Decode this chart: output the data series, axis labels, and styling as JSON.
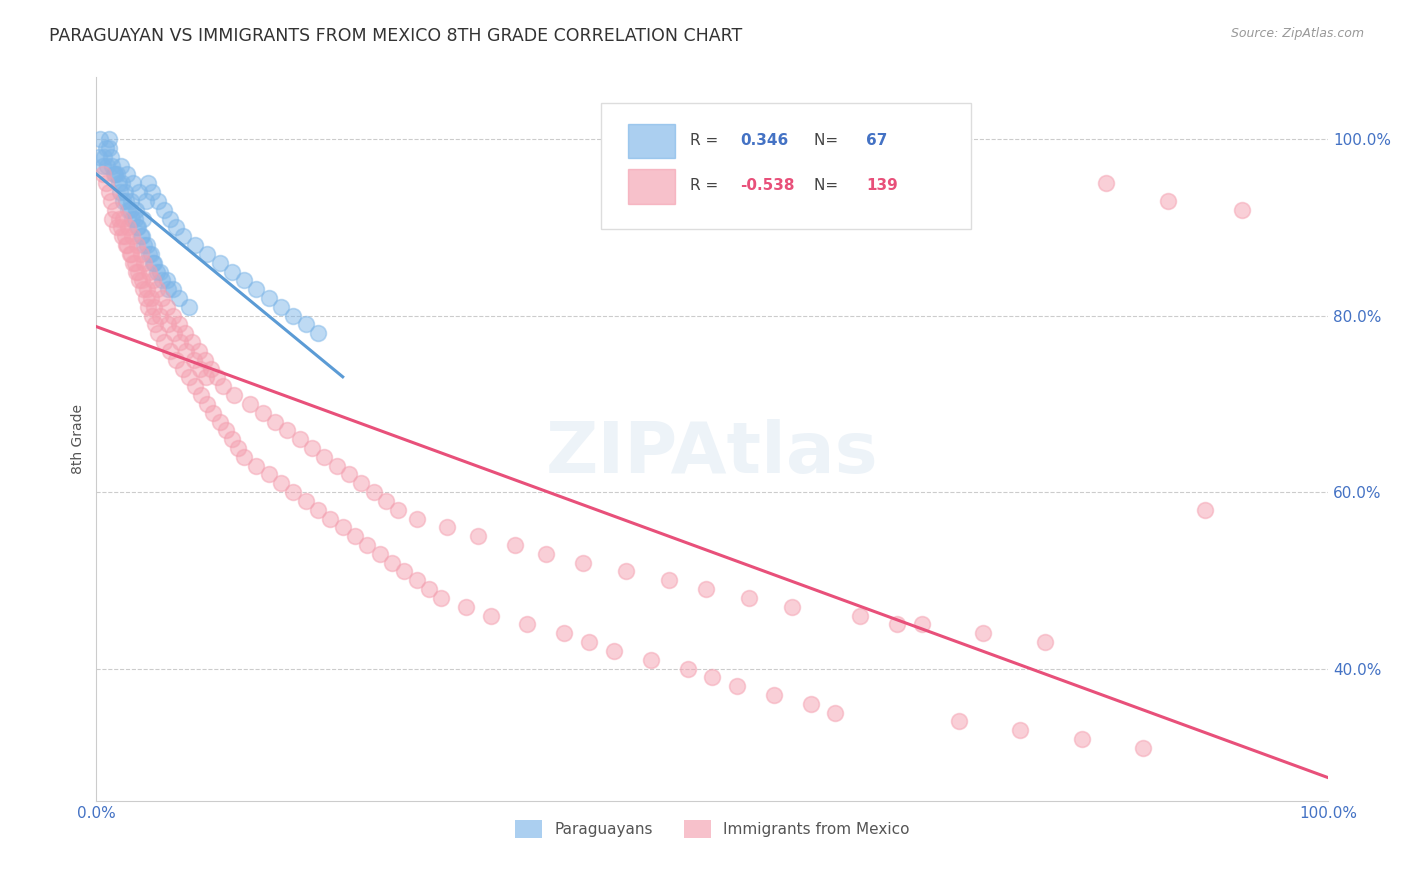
{
  "title": "PARAGUAYAN VS IMMIGRANTS FROM MEXICO 8TH GRADE CORRELATION CHART",
  "source": "Source: ZipAtlas.com",
  "ylabel": "8th Grade",
  "blue_R": 0.346,
  "blue_N": 67,
  "pink_R": -0.538,
  "pink_N": 139,
  "blue_color": "#7EB6E8",
  "pink_color": "#F4A0B0",
  "blue_line_color": "#5B9BD5",
  "pink_line_color": "#E8507A",
  "legend_label_blue": "Paraguayans",
  "legend_label_pink": "Immigrants from Mexico",
  "title_color": "#333333",
  "axis_label_color": "#555555",
  "tick_label_color": "#4472C4",
  "grid_color": "#CCCCCC",
  "background_color": "#FFFFFF",
  "blue_scatter_x": [
    0.2,
    0.5,
    0.8,
    1.0,
    1.2,
    1.5,
    1.8,
    2.0,
    2.3,
    2.5,
    2.8,
    3.0,
    3.2,
    3.5,
    3.8,
    4.0,
    4.2,
    4.5,
    5.0,
    5.5,
    6.0,
    6.5,
    7.0,
    8.0,
    9.0,
    10.0,
    11.0,
    12.0,
    13.0,
    14.0,
    15.0,
    16.0,
    17.0,
    18.0,
    1.0,
    1.3,
    1.7,
    2.1,
    2.4,
    2.7,
    3.1,
    3.4,
    3.7,
    4.1,
    4.4,
    4.7,
    5.2,
    5.7,
    6.2,
    6.7,
    7.5,
    0.3,
    0.6,
    0.9,
    1.4,
    1.9,
    2.2,
    2.6,
    2.9,
    3.3,
    3.6,
    3.9,
    4.3,
    4.6,
    4.9,
    5.3,
    5.8
  ],
  "blue_scatter_y": [
    98,
    97,
    99,
    100,
    98,
    96,
    95,
    97,
    94,
    96,
    93,
    95,
    92,
    94,
    91,
    93,
    95,
    94,
    93,
    92,
    91,
    90,
    89,
    88,
    87,
    86,
    85,
    84,
    83,
    82,
    81,
    80,
    79,
    78,
    99,
    97,
    96,
    95,
    93,
    92,
    91,
    90,
    89,
    88,
    87,
    86,
    85,
    84,
    83,
    82,
    81,
    100,
    98,
    97,
    96,
    94,
    93,
    92,
    91,
    90,
    89,
    88,
    87,
    86,
    85,
    84,
    83
  ],
  "pink_scatter_x": [
    0.5,
    0.8,
    1.0,
    1.2,
    1.5,
    1.8,
    2.0,
    2.3,
    2.5,
    2.8,
    3.0,
    3.2,
    3.5,
    3.8,
    4.0,
    4.2,
    4.5,
    4.8,
    5.0,
    5.5,
    6.0,
    6.5,
    7.0,
    7.5,
    8.0,
    8.5,
    9.0,
    9.5,
    10.0,
    10.5,
    11.0,
    11.5,
    12.0,
    13.0,
    14.0,
    15.0,
    16.0,
    17.0,
    18.0,
    19.0,
    20.0,
    21.0,
    22.0,
    23.0,
    24.0,
    25.0,
    26.0,
    27.0,
    28.0,
    30.0,
    32.0,
    35.0,
    38.0,
    40.0,
    42.0,
    45.0,
    48.0,
    50.0,
    52.0,
    55.0,
    58.0,
    60.0,
    65.0,
    70.0,
    75.0,
    80.0,
    85.0,
    90.0,
    2.2,
    2.6,
    2.9,
    3.3,
    3.6,
    3.9,
    4.3,
    4.6,
    4.9,
    5.3,
    5.7,
    6.2,
    6.7,
    7.2,
    7.8,
    8.3,
    8.8,
    9.3,
    9.8,
    10.3,
    11.2,
    12.5,
    13.5,
    14.5,
    15.5,
    16.5,
    17.5,
    18.5,
    19.5,
    20.5,
    21.5,
    22.5,
    23.5,
    24.5,
    26.0,
    28.5,
    31.0,
    34.0,
    36.5,
    39.5,
    43.0,
    46.5,
    49.5,
    53.0,
    56.5,
    62.0,
    67.0,
    72.0,
    77.0,
    82.0,
    87.0,
    93.0,
    1.3,
    1.7,
    2.1,
    2.4,
    2.7,
    3.1,
    3.4,
    3.7,
    4.1,
    4.4,
    4.7,
    5.2,
    5.8,
    6.3,
    6.8,
    7.3,
    7.9,
    8.4,
    8.9
  ],
  "pink_scatter_y": [
    96,
    95,
    94,
    93,
    92,
    91,
    90,
    89,
    88,
    87,
    86,
    85,
    84,
    83,
    82,
    81,
    80,
    79,
    78,
    77,
    76,
    75,
    74,
    73,
    72,
    71,
    70,
    69,
    68,
    67,
    66,
    65,
    64,
    63,
    62,
    61,
    60,
    59,
    58,
    57,
    56,
    55,
    54,
    53,
    52,
    51,
    50,
    49,
    48,
    47,
    46,
    45,
    44,
    43,
    42,
    41,
    40,
    39,
    38,
    37,
    36,
    35,
    45,
    34,
    33,
    32,
    31,
    58,
    91,
    90,
    89,
    88,
    87,
    86,
    85,
    84,
    83,
    82,
    81,
    80,
    79,
    78,
    77,
    76,
    75,
    74,
    73,
    72,
    71,
    70,
    69,
    68,
    67,
    66,
    65,
    64,
    63,
    62,
    61,
    60,
    59,
    58,
    57,
    56,
    55,
    54,
    53,
    52,
    51,
    50,
    49,
    48,
    47,
    46,
    45,
    44,
    43,
    95,
    93,
    92,
    91,
    90,
    89,
    88,
    87,
    86,
    85,
    84,
    83,
    82,
    81,
    80,
    79,
    78,
    77,
    76,
    75,
    74,
    73
  ]
}
